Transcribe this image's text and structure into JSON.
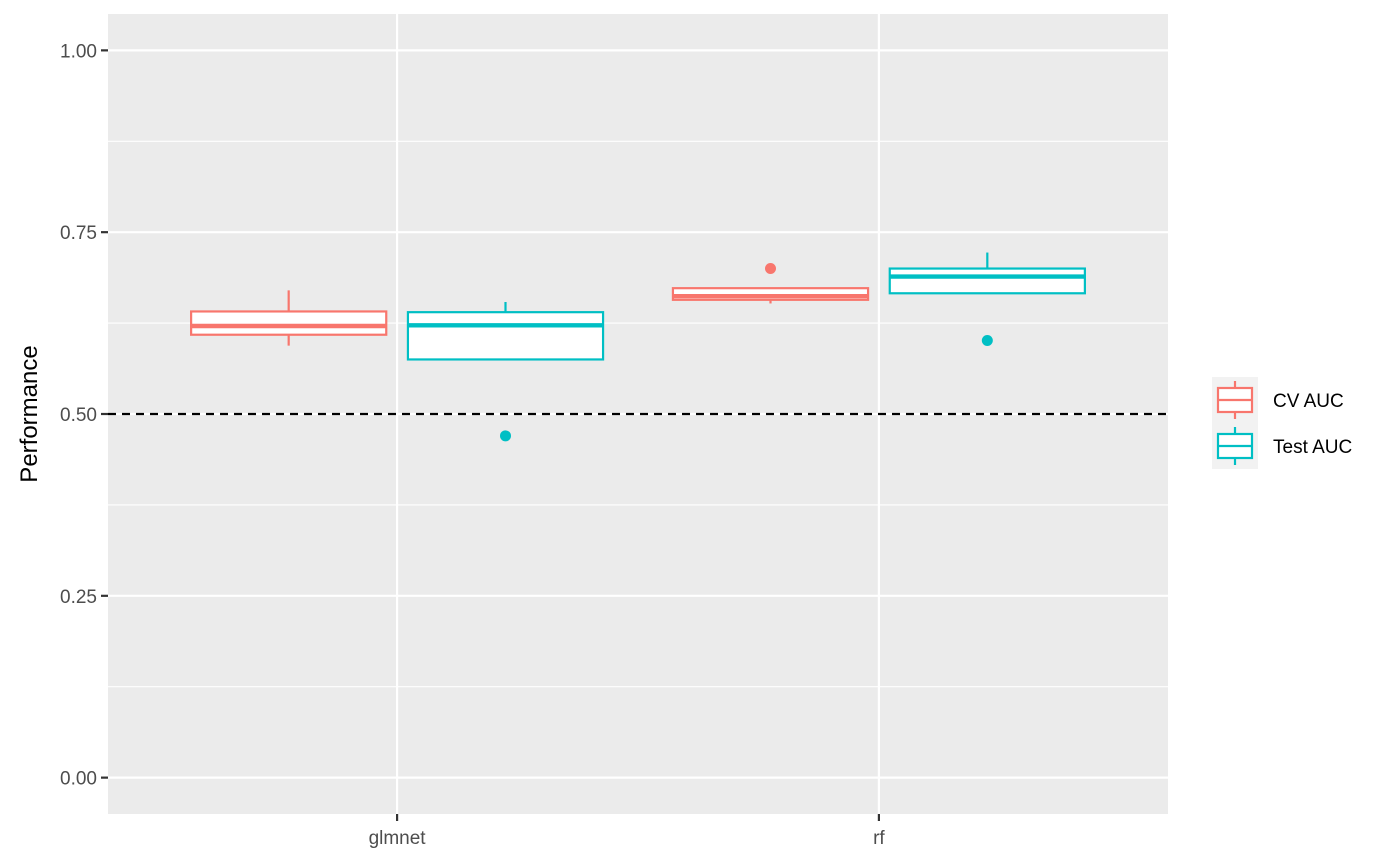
{
  "chart_data": {
    "type": "boxplot",
    "title": "",
    "xlabel": "",
    "ylabel": "Performance",
    "ylim": [
      -0.05,
      1.05
    ],
    "categories": [
      "glmnet",
      "rf"
    ],
    "y_ticks": [
      "0.00",
      "0.25",
      "0.50",
      "0.75",
      "1.00"
    ],
    "grid": true,
    "legend_position": "right",
    "reference_line": {
      "y": 0.5,
      "style": "dashed",
      "color": "#000000"
    },
    "series": [
      {
        "name": "CV AUC",
        "color": "#F8766D",
        "boxes": [
          {
            "category": "glmnet",
            "min": 0.594,
            "q1": 0.609,
            "median": 0.621,
            "q3": 0.641,
            "max": 0.67,
            "outliers": []
          },
          {
            "category": "rf",
            "min": 0.652,
            "q1": 0.657,
            "median": 0.662,
            "q3": 0.673,
            "max": 0.673,
            "outliers": [
              0.7
            ]
          }
        ]
      },
      {
        "name": "Test AUC",
        "color": "#00BFC4",
        "boxes": [
          {
            "category": "glmnet",
            "min": 0.575,
            "q1": 0.575,
            "median": 0.622,
            "q3": 0.64,
            "max": 0.654,
            "outliers": [
              0.47
            ]
          },
          {
            "category": "rf",
            "min": 0.666,
            "q1": 0.666,
            "median": 0.689,
            "q3": 0.7,
            "max": 0.722,
            "outliers": [
              0.601
            ]
          }
        ]
      }
    ]
  }
}
